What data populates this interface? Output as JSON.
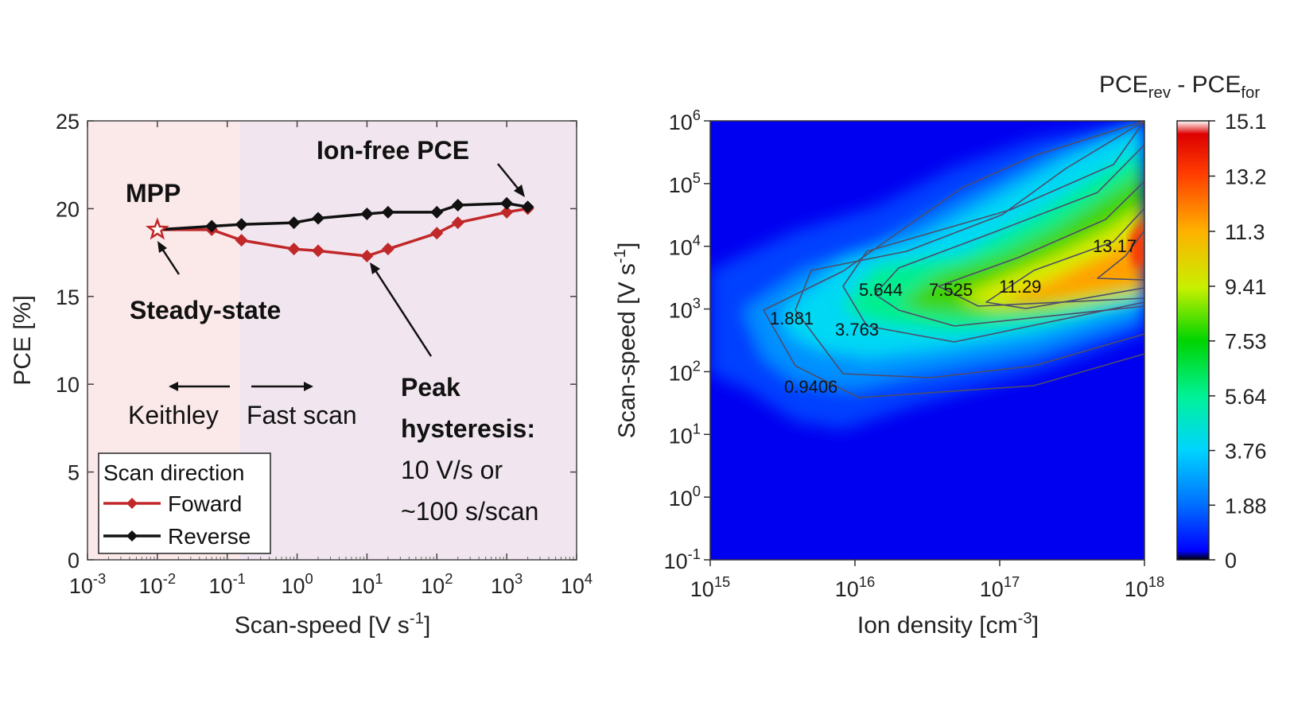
{
  "chart_data": [
    {
      "type": "line",
      "xscale": "log",
      "xlim": [
        0.001,
        10000
      ],
      "ylim": [
        0,
        25
      ],
      "x_ticks": [
        "10^-3",
        "10^-2",
        "10^-1",
        "10^0",
        "10^1",
        "10^2",
        "10^3",
        "10^4"
      ],
      "y_ticks": [
        "0",
        "5",
        "10",
        "15",
        "20",
        "25"
      ],
      "xlabel": "Scan-speed [V s^-1]",
      "ylabel": "PCE [%]",
      "background_regions": [
        {
          "x": [
            0.001,
            0.15
          ],
          "color": "#fbe9ea"
        },
        {
          "x": [
            0.15,
            10000
          ],
          "color": "#f1e6ef"
        }
      ],
      "legend": {
        "title": "Scan direction",
        "placement": "bottom-left"
      },
      "series": [
        {
          "name": "Foward",
          "color": "#c0282a",
          "x": [
            0.06,
            0.16,
            0.9,
            2,
            10,
            20,
            100,
            200,
            1000,
            2000
          ],
          "y": [
            18.8,
            18.2,
            17.7,
            17.6,
            17.3,
            17.7,
            18.6,
            19.2,
            19.8,
            20.0
          ]
        },
        {
          "name": "Reverse",
          "color": "#111111",
          "x": [
            0.06,
            0.16,
            0.9,
            2,
            10,
            20,
            100,
            200,
            1000,
            2000
          ],
          "y": [
            19.0,
            19.1,
            19.2,
            19.45,
            19.7,
            19.8,
            19.8,
            20.2,
            20.3,
            20.1
          ]
        }
      ],
      "mpp_point": {
        "x": 0.01,
        "y": 18.8,
        "marker": "star"
      },
      "annotations": {
        "ion_free": "Ion-free PCE",
        "mpp": "MPP",
        "steady": "Steady-state",
        "keithley": "Keithley",
        "fast": "Fast scan",
        "peak1": "Peak",
        "peak2": "hysteresis:",
        "peak3": "10 V/s or",
        "peak4": "~100 s/scan"
      }
    },
    {
      "type": "heatmap",
      "xscale": "log",
      "yscale": "log",
      "xlim": [
        1000000000000000.0,
        1e+18
      ],
      "ylim": [
        0.1,
        1000000
      ],
      "x_ticks": [
        "10^15",
        "10^16",
        "10^17",
        "10^18"
      ],
      "y_ticks": [
        "10^-1",
        "10^0",
        "10^1",
        "10^2",
        "10^3",
        "10^4",
        "10^5",
        "10^6"
      ],
      "xlabel": "Ion density [cm^-3]",
      "ylabel": "Scan-speed [V s^-1]",
      "colorbar": {
        "title": "PCE_rev - PCE_for",
        "ticks": [
          "0",
          "1.88",
          "3.76",
          "5.64",
          "7.53",
          "9.41",
          "11.3",
          "13.2",
          "15.1"
        ],
        "range": [
          0,
          15.1
        ]
      },
      "contour_labels": [
        "0.9406",
        "1.881",
        "3.763",
        "5.644",
        "7.525",
        "11.29",
        "13.17"
      ],
      "peak": {
        "x": 1e+18,
        "y": 10000,
        "value": 15.1
      }
    }
  ]
}
